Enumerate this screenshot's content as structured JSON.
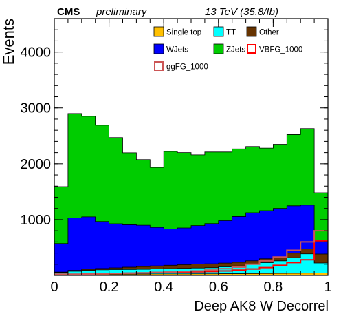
{
  "chart_data": {
    "type": "area",
    "subtype": "stacked-step-histogram",
    "header": {
      "experiment": "CMS",
      "status": "preliminary",
      "energy_lumi": "13 TeV (35.8/fb)"
    },
    "xlabel": "Deep AK8 W Decorrel",
    "ylabel": "Events",
    "xlim": [
      0,
      1
    ],
    "ylim": [
      0,
      4600
    ],
    "x_ticks": [
      0,
      0.2,
      0.4,
      0.6,
      0.8,
      1
    ],
    "x_tick_labels": [
      "0",
      "0.2",
      "0.4",
      "0.6",
      "0.8",
      "1"
    ],
    "y_ticks": [
      1000,
      2000,
      3000,
      4000
    ],
    "y_tick_labels": [
      "1000",
      "2000",
      "3000",
      "4000"
    ],
    "grid": false,
    "legend_position": "top-right",
    "bin_edges": [
      0,
      0.05,
      0.1,
      0.15,
      0.2,
      0.25,
      0.3,
      0.35,
      0.4,
      0.45,
      0.5,
      0.55,
      0.6,
      0.65,
      0.7,
      0.75,
      0.8,
      0.85,
      0.9,
      0.95,
      1.0
    ],
    "stacked_series": [
      {
        "name": "Single top",
        "color": "#ffc000",
        "values": [
          20,
          20,
          20,
          20,
          20,
          22,
          24,
          26,
          26,
          26,
          28,
          28,
          30,
          30,
          32,
          34,
          36,
          38,
          40,
          42
        ]
      },
      {
        "name": "TT",
        "color": "#00ffff",
        "values": [
          30,
          55,
          70,
          80,
          85,
          85,
          85,
          90,
          95,
          100,
          105,
          110,
          125,
          140,
          165,
          195,
          225,
          280,
          345,
          180
        ]
      },
      {
        "name": "Other",
        "color": "#663300",
        "values": [
          10,
          15,
          20,
          25,
          30,
          40,
          50,
          55,
          60,
          65,
          70,
          70,
          65,
          65,
          65,
          70,
          70,
          80,
          90,
          160
        ]
      },
      {
        "name": "WJets",
        "color": "#0000ff",
        "values": [
          510,
          940,
          940,
          840,
          790,
          760,
          740,
          690,
          650,
          660,
          690,
          720,
          760,
          820,
          860,
          860,
          870,
          850,
          785,
          230
        ]
      },
      {
        "name": "ZJets",
        "color": "#00cc00",
        "values": [
          1020,
          1870,
          1800,
          1725,
          1545,
          1290,
          1176,
          1074,
          1389,
          1349,
          1267,
          1282,
          1230,
          1211,
          1187,
          1121,
          1148,
          1275,
          1370,
          868
        ]
      }
    ],
    "line_series": [
      {
        "name": "VBFG_1000",
        "color": "#ff0000",
        "values": [
          20,
          20,
          25,
          30,
          35,
          40,
          45,
          50,
          55,
          60,
          65,
          70,
          80,
          95,
          115,
          140,
          180,
          230,
          280,
          620
        ]
      },
      {
        "name": "ggFG_1000",
        "color": "#cc5555",
        "values": [
          15,
          20,
          25,
          30,
          35,
          40,
          45,
          55,
          60,
          70,
          80,
          95,
          120,
          150,
          200,
          260,
          330,
          450,
          600,
          800
        ]
      }
    ],
    "legend": [
      {
        "name": "Single top",
        "style": "fill",
        "color": "#ffc000"
      },
      {
        "name": "TT",
        "style": "fill",
        "color": "#00ffff"
      },
      {
        "name": "Other",
        "style": "fill",
        "color": "#663300"
      },
      {
        "name": "WJets",
        "style": "fill",
        "color": "#0000ff"
      },
      {
        "name": "ZJets",
        "style": "fill",
        "color": "#00cc00"
      },
      {
        "name": "VBFG_1000",
        "style": "line",
        "color": "#ff0000"
      },
      {
        "name": "ggFG_1000",
        "style": "line",
        "color": "#cc5555"
      }
    ]
  }
}
